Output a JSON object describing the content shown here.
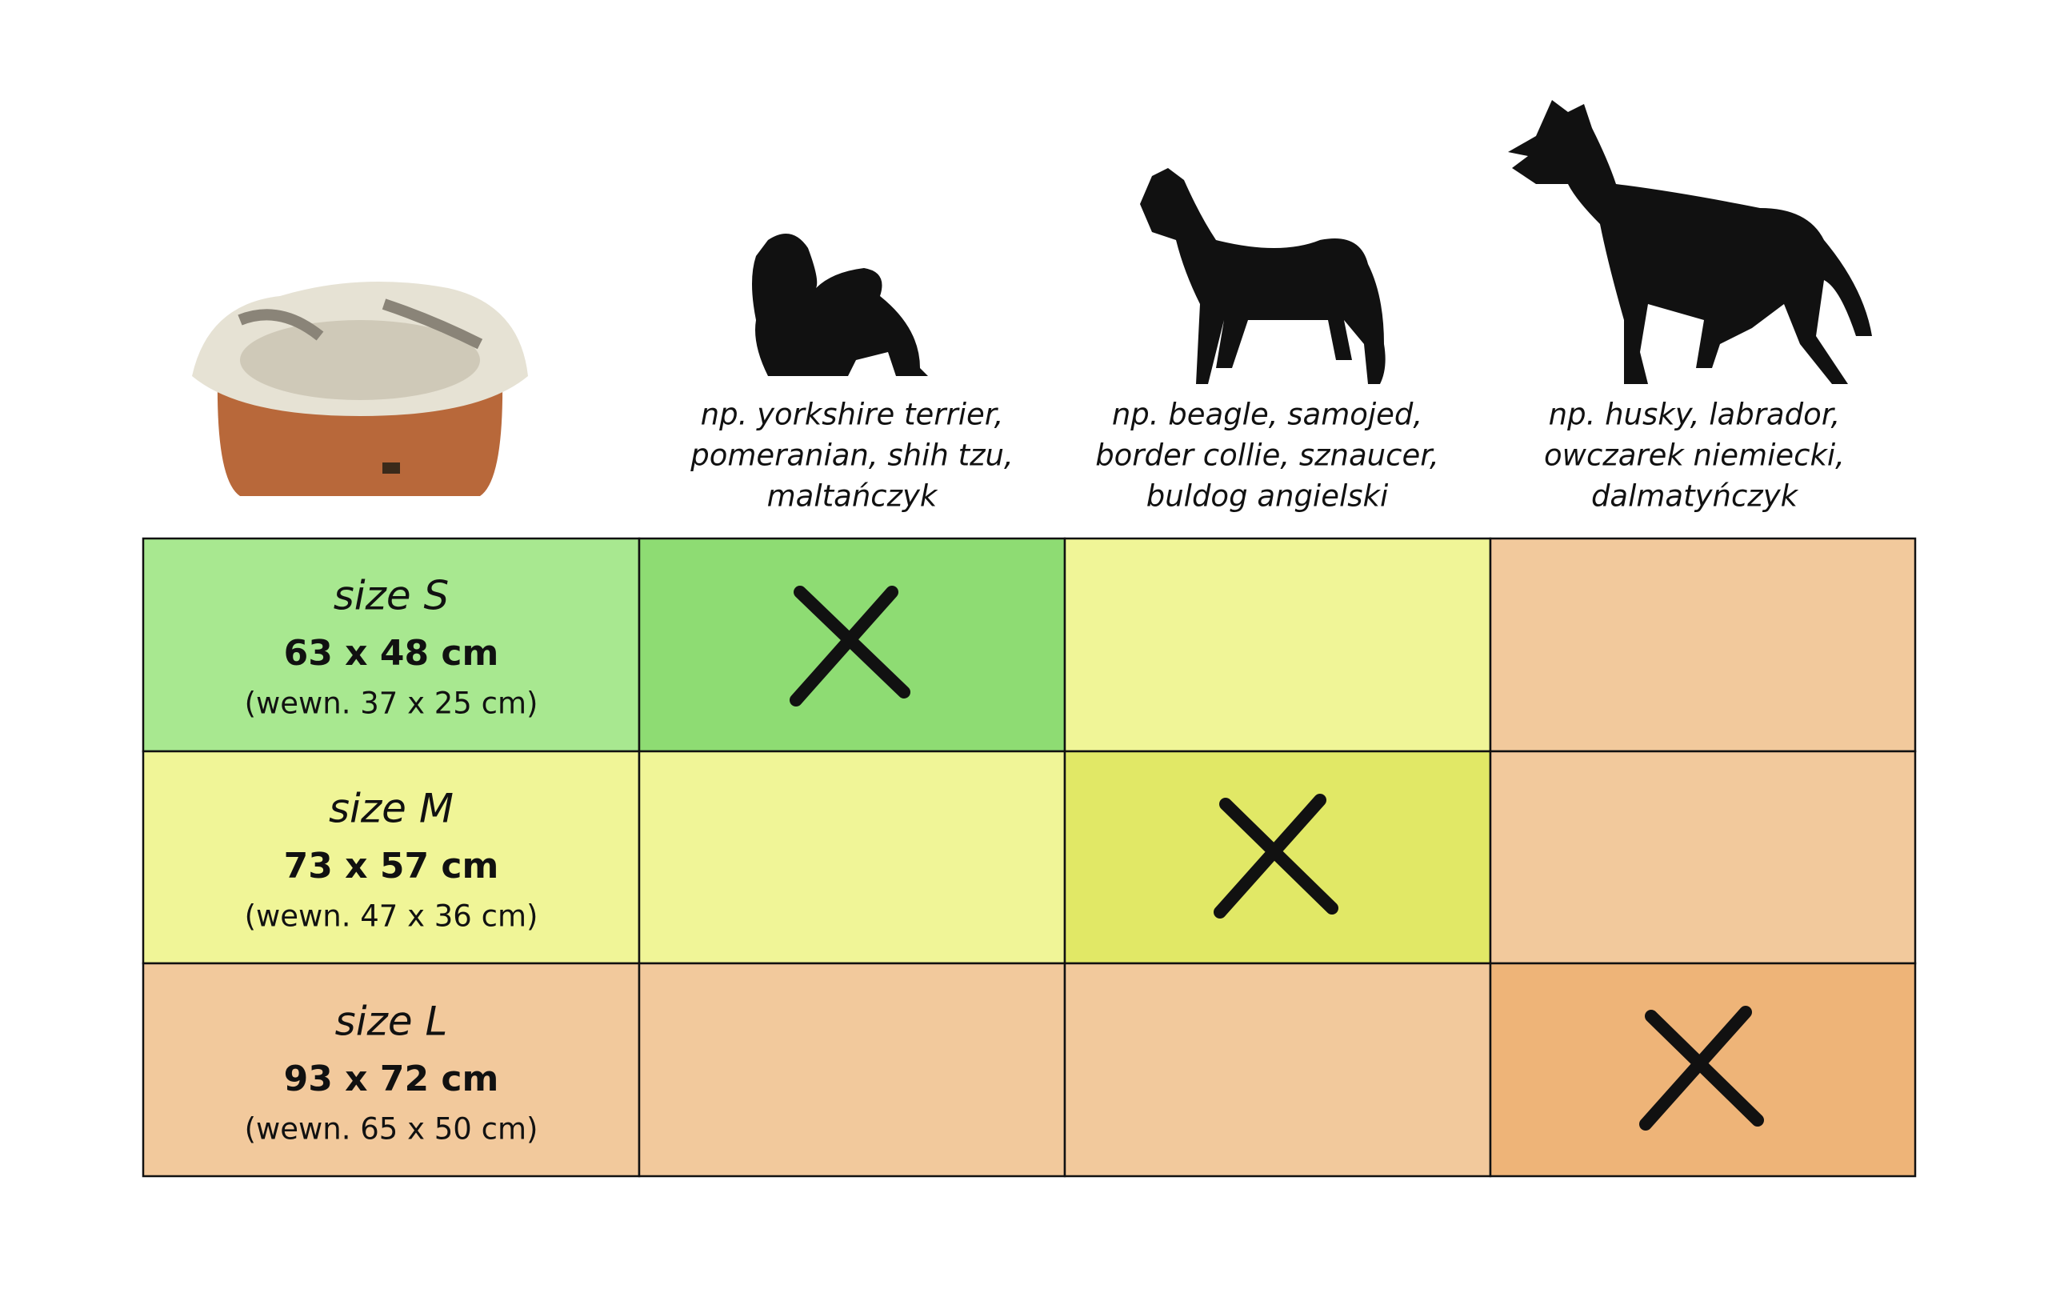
{
  "header": {
    "columns": [
      {
        "lines": [
          "np. yorkshire terrier,",
          "pomeranian, shih tzu,",
          "maltańczyk"
        ]
      },
      {
        "lines": [
          "np. beagle, samojed,",
          "border collie, sznaucer,",
          "buldog angielski"
        ]
      },
      {
        "lines": [
          "np. husky, labrador,",
          "owczarek niemiecki,",
          "dalmatyńczyk"
        ]
      }
    ]
  },
  "table": {
    "rows": [
      {
        "size": "size S",
        "dims": "63 x 48 cm",
        "inner": "(wewn. 37 x 25 cm)"
      },
      {
        "size": "size M",
        "dims": "73 x 57 cm",
        "inner": "(wewn. 47 x 36 cm)"
      },
      {
        "size": "size L",
        "dims": "93 x 72 cm",
        "inner": "(wewn. 65 x 50 cm)"
      }
    ]
  }
}
